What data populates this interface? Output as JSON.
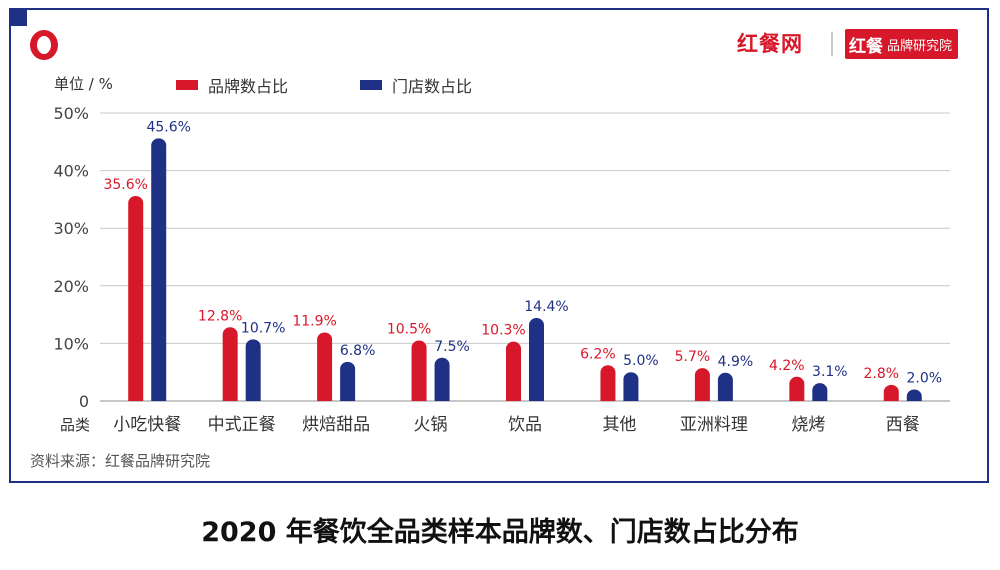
{
  "header": {
    "brand_primary": "红餐网",
    "brand_badge_main": "红餐",
    "brand_badge_sub": "品牌研究院"
  },
  "unit_label": "单位 / %",
  "category_axis_label": "品类",
  "source_note": "资料来源：红餐品牌研究院",
  "figure_title": "2020 年餐饮全品类样本品牌数、门店数占比分布",
  "colors": {
    "brand_red": "#d7182a",
    "navy": "#1f3185",
    "grid": "#c9c9c9"
  },
  "chart_data": {
    "type": "bar",
    "categories": [
      "小吃快餐",
      "中式正餐",
      "烘焙甜品",
      "火锅",
      "饮品",
      "其他",
      "亚洲料理",
      "烧烤",
      "西餐"
    ],
    "series": [
      {
        "name": "品牌数占比",
        "color": "#d7182a",
        "values": [
          35.6,
          12.8,
          11.9,
          10.5,
          10.3,
          6.2,
          5.7,
          4.2,
          2.8
        ],
        "labels": [
          "35.6%",
          "12.8%",
          "11.9%",
          "10.5%",
          "10.3%",
          "6.2%",
          "5.7%",
          "4.2%",
          "2.8%"
        ]
      },
      {
        "name": "门店数占比",
        "color": "#1f3185",
        "values": [
          45.6,
          10.7,
          6.8,
          7.5,
          14.4,
          5.0,
          4.9,
          3.1,
          2.0
        ],
        "labels": [
          "45.6%",
          "10.7%",
          "6.8%",
          "7.5%",
          "14.4%",
          "5.0%",
          "4.9%",
          "3.1%",
          "2.0%"
        ]
      }
    ],
    "ylim": [
      0,
      50
    ],
    "yticks": [
      0,
      10,
      20,
      30,
      40,
      50
    ],
    "ytick_labels": [
      "0",
      "10%",
      "20%",
      "30%",
      "40%",
      "50%"
    ],
    "grid": true,
    "legend_position": "top-left"
  }
}
